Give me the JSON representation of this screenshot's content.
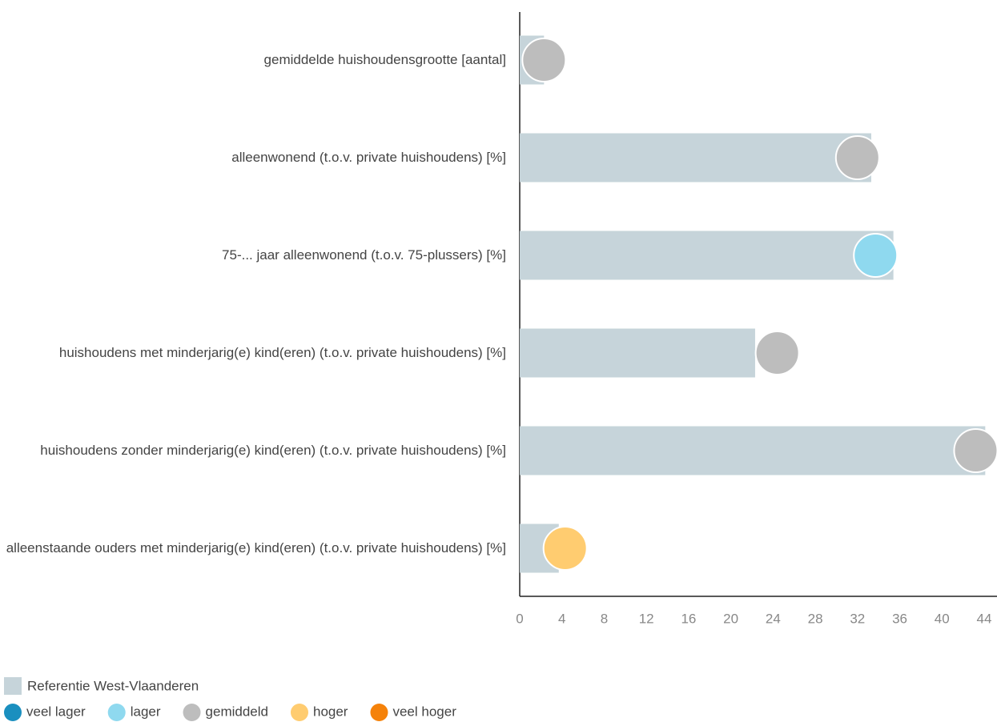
{
  "chart_data": {
    "type": "bar",
    "categories": [
      "gemiddelde huishoudensgrootte [aantal]",
      "alleenwonend (t.o.v. private huishoudens) [%]",
      "75-... jaar alleenwonend (t.o.v. 75-plussers) [%]",
      "huishoudens met minderjarig(e) kind(eren) (t.o.v. private huishoudens) [%]",
      "huishoudens zonder minderjarig(e) kind(eren) (t.o.v. private huishoudens) [%]",
      "alleenstaande ouders met minderjarig(e) kind(eren) (t.o.v. private huishoudens) [%]"
    ],
    "series": [
      {
        "name": "Referentie West-Vlaanderen",
        "color": "#c6d4da",
        "values": [
          2.3,
          33.3,
          35.4,
          22.3,
          44.1,
          3.7
        ]
      }
    ],
    "points": {
      "values": [
        2.3,
        32.0,
        33.7,
        24.4,
        43.2,
        4.3
      ],
      "levels": [
        "gemiddeld",
        "gemiddeld",
        "lager",
        "gemiddeld",
        "gemiddeld",
        "hoger"
      ]
    },
    "levels": [
      {
        "name": "veel lager",
        "color": "#1a8fbf"
      },
      {
        "name": "lager",
        "color": "#8fd9ef"
      },
      {
        "name": "gemiddeld",
        "color": "#bdbdbd"
      },
      {
        "name": "hoger",
        "color": "#ffcc70"
      },
      {
        "name": "veel hoger",
        "color": "#f5820a"
      }
    ],
    "xlim": [
      0,
      44
    ],
    "xticks": [
      0,
      4,
      8,
      12,
      16,
      20,
      24,
      28,
      32,
      36,
      40,
      44
    ]
  }
}
